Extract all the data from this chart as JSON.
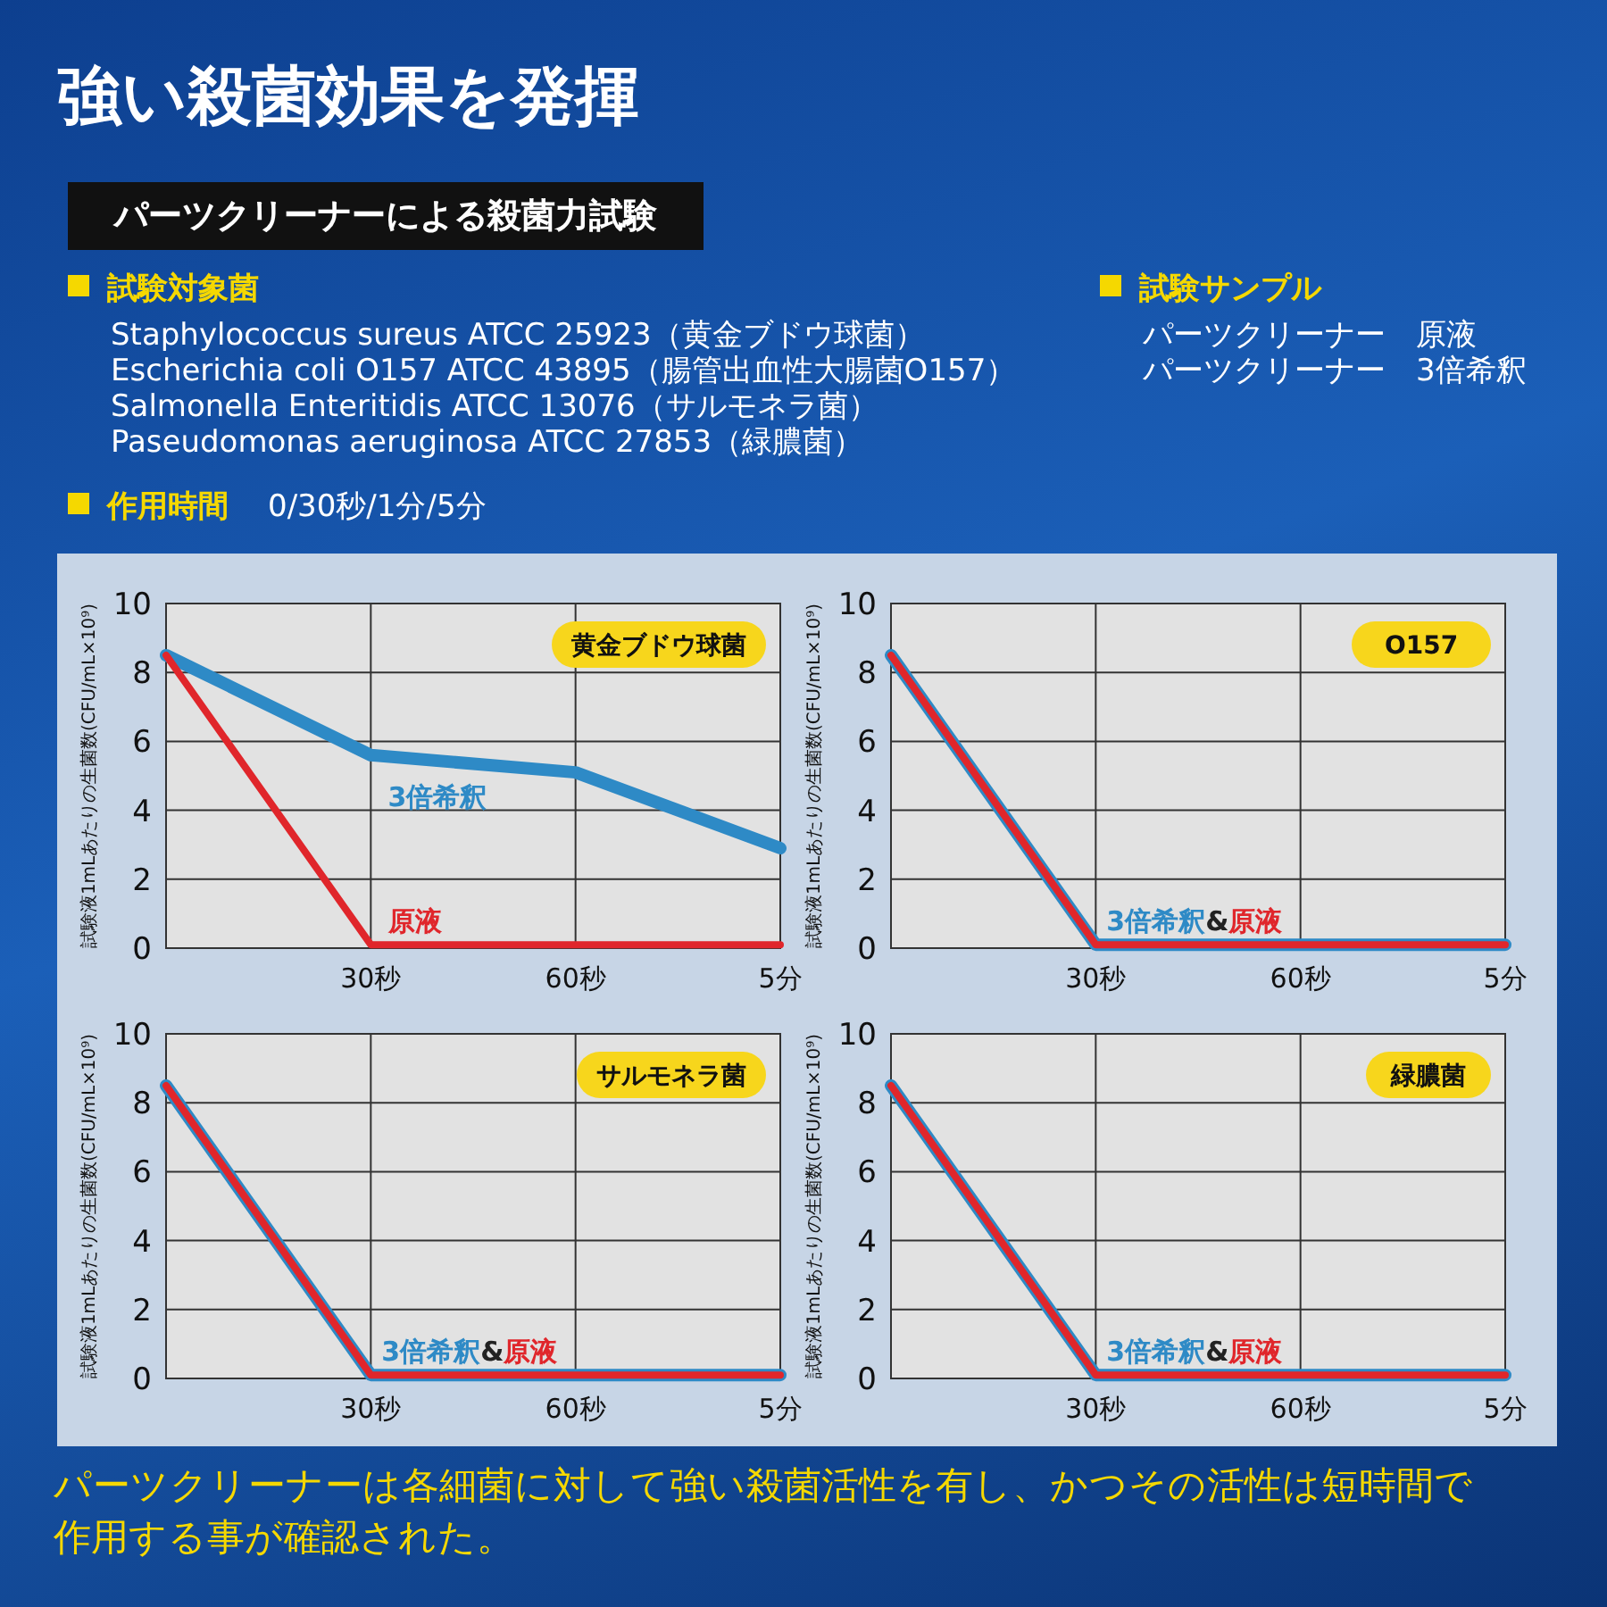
{
  "chart_data": [
    {
      "type": "other",
      "title": "強い殺菌効果を発揮",
      "subtitle": "パーツクリーナーによる殺菌力試験",
      "annotations": [
        "試験対象菌",
        "Staphylococcus sureus ATCC 25923（黄金ブドウ球菌）",
        "Escherichia coli O157 ATCC 43895（腸管出血性大腸菌O157）",
        "Salmonella Enteritidis ATCC 13076（サルモネラ菌）",
        "Paseudomonas aeruginosa ATCC 27853（緑膿菌）",
        "作用時間",
        "0/30秒/1分/5分",
        "試験サンプル",
        "パーツクリーナー　原液",
        "パーツクリーナー　3倍希釈"
      ]
    },
    {
      "type": "line",
      "title": "黄金ブドウ球菌",
      "ylabel": "試験液1mLあたりの生菌数(CFU/mL×10⁹)",
      "categories": [
        null,
        "30秒",
        "60秒",
        "5分"
      ],
      "ylim": [
        0,
        10
      ],
      "yticks": [
        0,
        2,
        4,
        6,
        8,
        10
      ],
      "grid": true,
      "series": [
        {
          "name": "原液",
          "color": "#e0262b",
          "values": [
            8.5,
            0.1,
            0.1,
            0.1
          ]
        },
        {
          "name": "3倍希釈",
          "color": "#2e8ac6",
          "values": [
            8.5,
            5.6,
            5.1,
            2.9
          ]
        }
      ]
    },
    {
      "type": "line",
      "title": "O157",
      "ylabel": "試験液1mLあたりの生菌数(CFU/mL×10⁹)",
      "categories": [
        null,
        "30秒",
        "60秒",
        "5分"
      ],
      "ylim": [
        0,
        10
      ],
      "yticks": [
        0,
        2,
        4,
        6,
        8,
        10
      ],
      "grid": true,
      "annotations": [
        "&"
      ],
      "series": [
        {
          "name": "原液",
          "color": "#e0262b",
          "values": [
            8.5,
            0.1,
            0.1,
            0.1
          ]
        },
        {
          "name": "3倍希釈",
          "color": "#2e8ac6",
          "values": [
            8.5,
            0.1,
            0.1,
            0.1
          ]
        }
      ]
    },
    {
      "type": "line",
      "title": "サルモネラ菌",
      "ylabel": "試験液1mLあたりの生菌数(CFU/mL×10⁹)",
      "categories": [
        null,
        "30秒",
        "60秒",
        "5分"
      ],
      "ylim": [
        0,
        10
      ],
      "yticks": [
        0,
        2,
        4,
        6,
        8,
        10
      ],
      "grid": true,
      "annotations": [
        "&"
      ],
      "series": [
        {
          "name": "原液",
          "color": "#e0262b",
          "values": [
            8.5,
            0.1,
            0.1,
            0.1
          ]
        },
        {
          "name": "3倍希釈",
          "color": "#2e8ac6",
          "values": [
            8.5,
            0.1,
            0.1,
            0.1
          ]
        }
      ]
    },
    {
      "type": "line",
      "title": "緑膿菌",
      "ylabel": "試験液1mLあたりの生菌数(CFU/mL×10⁹)",
      "categories": [
        null,
        "30秒",
        "60秒",
        "5分"
      ],
      "ylim": [
        0,
        10
      ],
      "yticks": [
        0,
        2,
        4,
        6,
        8,
        10
      ],
      "grid": true,
      "annotations": [
        "&"
      ],
      "series": [
        {
          "name": "原液",
          "color": "#e0262b",
          "values": [
            8.5,
            0.1,
            0.1,
            0.1
          ]
        },
        {
          "name": "3倍希釈",
          "color": "#2e8ac6",
          "values": [
            8.5,
            0.1,
            0.1,
            0.1
          ]
        }
      ]
    },
    {
      "type": "other",
      "annotations": [
        "パーツクリーナーは各細菌に対して強い殺菌活性を有し、かつその活性は短時間で作用する事が確認された。"
      ]
    }
  ]
}
